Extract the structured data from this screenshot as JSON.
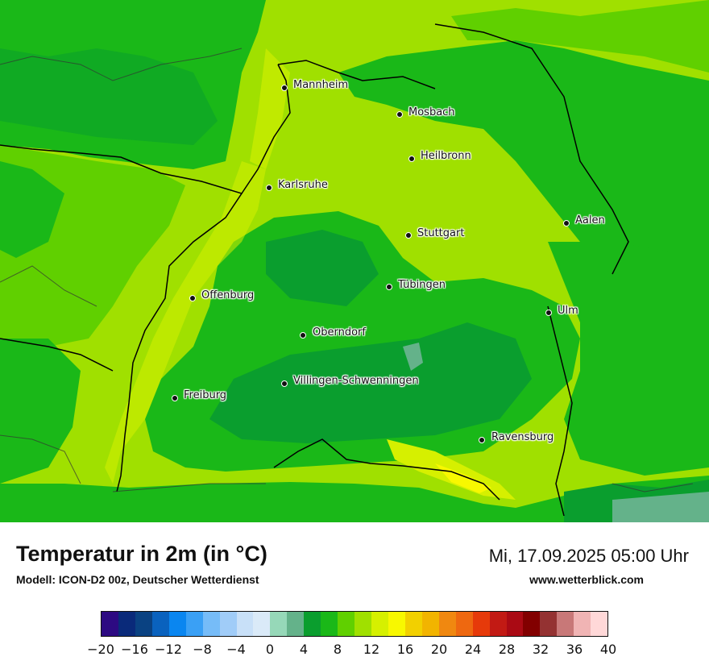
{
  "title": "Temperatur in 2m (in °C)",
  "subtitle": "Modell: ICON-D2 00z, Deutscher Wetterdienst",
  "datetime": "Mi, 17.09.2025 05:00 Uhr",
  "website": "www.wetterblick.com",
  "cities": [
    {
      "name": "Mannheim"
    },
    {
      "name": "Mosbach"
    },
    {
      "name": "Heilbronn"
    },
    {
      "name": "Karlsruhe"
    },
    {
      "name": "Aalen"
    },
    {
      "name": "Stuttgart"
    },
    {
      "name": "Tübingen"
    },
    {
      "name": "Offenburg"
    },
    {
      "name": "Ulm"
    },
    {
      "name": "Oberndorf"
    },
    {
      "name": "Villingen-Schwenningen"
    },
    {
      "name": "Freiburg"
    },
    {
      "name": "Ravensburg"
    }
  ],
  "legend": {
    "colors": [
      "#2d0a82",
      "#0a2a7a",
      "#0a4282",
      "#0a62be",
      "#0a86f0",
      "#3aa0f5",
      "#76bcf8",
      "#a0ccf8",
      "#c8e0f8",
      "#daeaf8",
      "#96d8b8",
      "#64b28a",
      "#0a9e2e",
      "#1ab818",
      "#60d000",
      "#a0e000",
      "#d6f000",
      "#f8f800",
      "#f2d000",
      "#f2b400",
      "#f08810",
      "#ee6810",
      "#e63a0a",
      "#c21a14",
      "#aa0a14",
      "#820000",
      "#943232",
      "#c87878",
      "#f0b4b4",
      "#ffd8d8"
    ],
    "tick_labels": [
      "−20",
      "−16",
      "−12",
      "−8",
      "−4",
      "0",
      "4",
      "8",
      "12",
      "16",
      "20",
      "24",
      "28",
      "32",
      "36",
      "40"
    ]
  },
  "map_colors": {
    "dark_green": "#0a9e2e",
    "mid_green": "#1ab818",
    "light_green": "#60d000",
    "yellow_green": "#a0e000",
    "lime": "#d6f000",
    "yellow": "#f8f800",
    "teal": "#64b28a",
    "border": "#000000"
  }
}
